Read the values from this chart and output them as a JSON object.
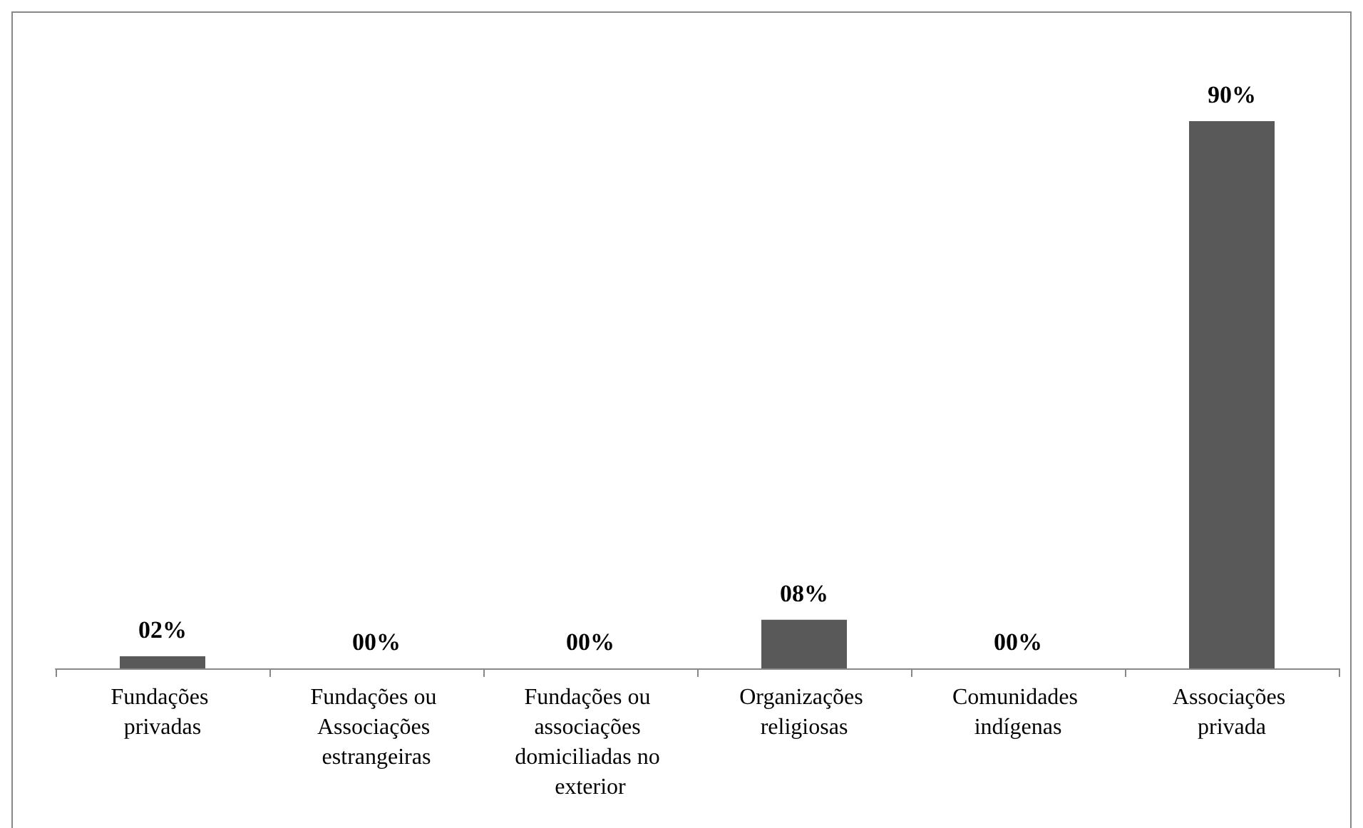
{
  "chart_data": {
    "type": "bar",
    "categories": [
      "Fundações privadas",
      "Fundações ou Associações estrangeiras",
      "Fundações ou associações domiciliadas no exterior",
      "Organizações religiosas",
      "Comunidades indígenas",
      "Associações privada"
    ],
    "values": [
      2,
      0,
      0,
      8,
      0,
      90
    ],
    "color": "#595959",
    "value_labels": [
      "02%",
      "00%",
      "00%",
      "08%",
      "00%",
      "90%"
    ]
  }
}
